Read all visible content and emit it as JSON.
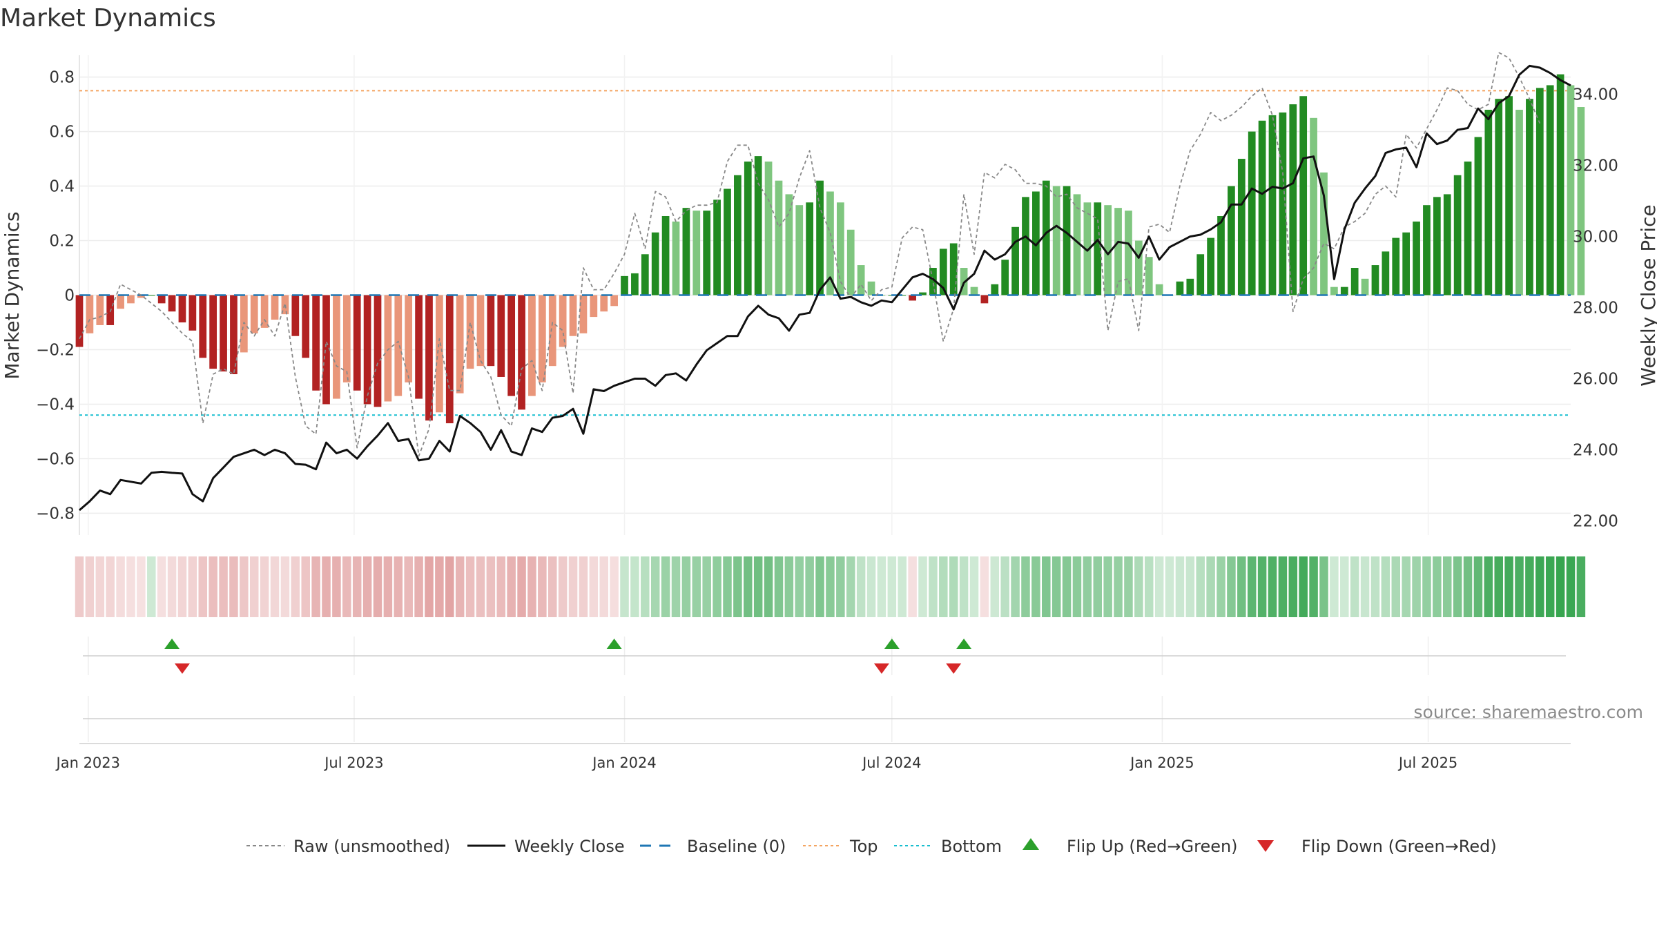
{
  "chart_data": {
    "type": "bar",
    "title": "Market Dynamics",
    "source": "source: sharemaestro.com",
    "left_axis": {
      "label": "Market Dynamics",
      "range": [
        -0.88,
        0.88
      ],
      "ticks": [
        0.8,
        0.6,
        0.4,
        0.2,
        0,
        -0.2,
        -0.4,
        -0.6,
        -0.8
      ],
      "tick_labels": [
        "0.8",
        "0.6",
        "0.4",
        "0.2",
        "0",
        "−0.2",
        "−0.4",
        "−0.6",
        "−0.8"
      ]
    },
    "right_axis": {
      "label": "Weekly Close Price",
      "range": [
        21.6,
        35.1
      ],
      "ticks": [
        34,
        32,
        30,
        28,
        26,
        24,
        22
      ],
      "tick_labels": [
        "34.00",
        "32.00",
        "30.00",
        "28.00",
        "26.00",
        "24.00",
        "22.00"
      ]
    },
    "x_axis": {
      "start": "2022-12-26",
      "end": "2025-10-06",
      "ticks": [
        "2023-01-01",
        "2023-07-01",
        "2024-01-01",
        "2024-07-01",
        "2025-01-01",
        "2025-07-01"
      ],
      "tick_labels": [
        "Jan 2023",
        "Jul 2023",
        "Jan 2024",
        "Jul 2024",
        "Jan 2025",
        "Jul 2025"
      ]
    },
    "reference_lines": {
      "baseline": 0,
      "top": 0.75,
      "bottom": -0.44
    },
    "series": [
      {
        "name": "Market Dynamics",
        "start_date": "2022-12-26",
        "interval_days": 7,
        "values": [
          -0.19,
          -0.14,
          -0.11,
          -0.11,
          -0.05,
          -0.03,
          -0.01,
          0,
          -0.03,
          -0.06,
          -0.1,
          -0.13,
          -0.23,
          -0.27,
          -0.28,
          -0.29,
          -0.21,
          -0.14,
          -0.12,
          -0.09,
          -0.07,
          -0.15,
          -0.23,
          -0.35,
          -0.4,
          -0.38,
          -0.32,
          -0.35,
          -0.4,
          -0.41,
          -0.39,
          -0.37,
          -0.32,
          -0.38,
          -0.46,
          -0.43,
          -0.47,
          -0.36,
          -0.27,
          -0.26,
          -0.26,
          -0.3,
          -0.37,
          -0.42,
          -0.37,
          -0.32,
          -0.26,
          -0.19,
          -0.15,
          -0.14,
          -0.08,
          -0.06,
          -0.04,
          0.07,
          0.08,
          0.15,
          0.23,
          0.29,
          0.27,
          0.32,
          0.31,
          0.31,
          0.35,
          0.39,
          0.44,
          0.49,
          0.51,
          0.49,
          0.42,
          0.37,
          0.33,
          0.34,
          0.42,
          0.38,
          0.34,
          0.24,
          0.11,
          0.05,
          0,
          0,
          0,
          -0.02,
          0.01,
          0.1,
          0.17,
          0.19,
          0.1,
          0.03,
          -0.03,
          0.04,
          0.13,
          0.25,
          0.36,
          0.38,
          0.42,
          0.4,
          0.4,
          0.37,
          0.34,
          0.34,
          0.33,
          0.32,
          0.31,
          0.2,
          0.14,
          0.04,
          0,
          0.05,
          0.06,
          0.15,
          0.21,
          0.29,
          0.4,
          0.5,
          0.6,
          0.64,
          0.66,
          0.67,
          0.7,
          0.73,
          0.65,
          0.45,
          0.03,
          0.03,
          0.1,
          0.06,
          0.11,
          0.16,
          0.21,
          0.23,
          0.27,
          0.33,
          0.36,
          0.37,
          0.44,
          0.49,
          0.58,
          0.68,
          0.72,
          0.73,
          0.68,
          0.72,
          0.76,
          0.77,
          0.81,
          0.77,
          0.69
        ]
      },
      {
        "name": "Raw (unsmoothed)",
        "start_date": "2022-12-26",
        "interval_days": 7,
        "values": [
          -0.16,
          -0.09,
          -0.08,
          -0.06,
          0.04,
          0.02,
          0,
          -0.03,
          -0.06,
          -0.1,
          -0.14,
          -0.17,
          -0.47,
          -0.29,
          -0.27,
          -0.29,
          -0.1,
          -0.15,
          -0.09,
          -0.15,
          -0.03,
          -0.3,
          -0.48,
          -0.51,
          -0.17,
          -0.26,
          -0.28,
          -0.56,
          -0.37,
          -0.25,
          -0.2,
          -0.17,
          -0.3,
          -0.59,
          -0.49,
          -0.16,
          -0.35,
          -0.35,
          -0.1,
          -0.24,
          -0.3,
          -0.44,
          -0.48,
          -0.27,
          -0.24,
          -0.35,
          -0.1,
          -0.13,
          -0.36,
          0.1,
          0.02,
          0.02,
          0.08,
          0.15,
          0.3,
          0.17,
          0.38,
          0.36,
          0.27,
          0.31,
          0.33,
          0.33,
          0.34,
          0.49,
          0.55,
          0.55,
          0.41,
          0.35,
          0.25,
          0.3,
          0.43,
          0.53,
          0.32,
          0.23,
          0.05,
          -0.01,
          0.04,
          -0.02,
          0.02,
          0.03,
          0.21,
          0.25,
          0.24,
          0.05,
          -0.17,
          -0.05,
          0.37,
          0.15,
          0.45,
          0.43,
          0.48,
          0.46,
          0.41,
          0.41,
          0.4,
          0.36,
          0.37,
          0.32,
          0.3,
          0.28,
          -0.13,
          0.05,
          0.06,
          -0.13,
          0.25,
          0.26,
          0.23,
          0.4,
          0.53,
          0.59,
          0.67,
          0.64,
          0.66,
          0.69,
          0.73,
          0.76,
          0.66,
          0.45,
          -0.06,
          0.06,
          0.1,
          0.19,
          0.17,
          0.25,
          0.27,
          0.3,
          0.37,
          0.4,
          0.36,
          0.59,
          0.54,
          0.61,
          0.68,
          0.76,
          0.75,
          0.7,
          0.68,
          0.7,
          0.89,
          0.87,
          0.8,
          0.72,
          0.63
        ]
      },
      {
        "name": "Weekly Close",
        "axis": "right",
        "start_date": "2022-12-26",
        "interval_days": 7,
        "values": [
          22.3,
          22.55,
          22.85,
          22.75,
          23.15,
          23.1,
          23.05,
          23.35,
          23.38,
          23.35,
          23.33,
          22.75,
          22.55,
          23.2,
          23.5,
          23.8,
          23.9,
          24.0,
          23.85,
          24.0,
          23.9,
          23.6,
          23.58,
          23.45,
          24.2,
          23.9,
          24.0,
          23.75,
          24.1,
          24.4,
          24.75,
          24.25,
          24.3,
          23.7,
          23.75,
          24.25,
          23.95,
          24.95,
          24.75,
          24.5,
          24.0,
          24.55,
          23.95,
          23.85,
          24.6,
          24.5,
          24.9,
          24.95,
          25.15,
          24.45,
          25.7,
          25.65,
          25.8,
          25.9,
          26.0,
          26.0,
          25.8,
          26.1,
          26.15,
          25.95,
          26.4,
          26.8,
          27.0,
          27.2,
          27.2,
          27.75,
          28.05,
          27.8,
          27.7,
          27.35,
          27.8,
          27.85,
          28.5,
          28.85,
          28.25,
          28.3,
          28.15,
          28.05,
          28.2,
          28.15,
          28.5,
          28.85,
          28.95,
          28.8,
          28.55,
          27.95,
          28.7,
          28.95,
          29.6,
          29.35,
          29.5,
          29.85,
          30.0,
          29.75,
          30.1,
          30.3,
          30.1,
          29.85,
          29.6,
          29.9,
          29.5,
          29.85,
          29.8,
          29.4,
          30.0,
          29.35,
          29.7,
          29.85,
          30.0,
          30.05,
          30.2,
          30.4,
          30.9,
          30.9,
          31.35,
          31.2,
          31.4,
          31.35,
          31.5,
          32.2,
          32.25,
          31.15,
          28.8,
          30.2,
          30.95,
          31.35,
          31.7,
          32.35,
          32.45,
          32.5,
          31.95,
          32.9,
          32.6,
          32.7,
          33.0,
          33.05,
          33.6,
          33.3,
          33.75,
          33.95,
          34.55,
          34.8,
          34.75,
          34.6,
          34.4,
          34.25
        ]
      }
    ],
    "regime_strip": {
      "label": "regime intensity (negative = red, positive = green)",
      "values": [
        -0.19,
        -0.14,
        -0.11,
        -0.11,
        -0.05,
        -0.03,
        -0.01,
        0.03,
        -0.03,
        -0.06,
        -0.1,
        -0.13,
        -0.23,
        -0.27,
        -0.28,
        -0.29,
        -0.21,
        -0.14,
        -0.12,
        -0.09,
        -0.07,
        -0.15,
        -0.23,
        -0.35,
        -0.4,
        -0.38,
        -0.32,
        -0.35,
        -0.4,
        -0.41,
        -0.39,
        -0.37,
        -0.32,
        -0.38,
        -0.46,
        -0.43,
        -0.47,
        -0.36,
        -0.27,
        -0.26,
        -0.26,
        -0.3,
        -0.37,
        -0.42,
        -0.37,
        -0.32,
        -0.26,
        -0.19,
        -0.15,
        -0.14,
        -0.08,
        -0.06,
        -0.04,
        0.07,
        0.08,
        0.15,
        0.23,
        0.29,
        0.27,
        0.32,
        0.31,
        0.31,
        0.35,
        0.39,
        0.44,
        0.49,
        0.51,
        0.49,
        0.42,
        0.37,
        0.33,
        0.34,
        0.42,
        0.38,
        0.34,
        0.24,
        0.11,
        0.05,
        0.03,
        0.03,
        0.03,
        -0.02,
        0.03,
        0.1,
        0.17,
        0.19,
        0.1,
        0.03,
        -0.03,
        0.04,
        0.13,
        0.25,
        0.36,
        0.38,
        0.42,
        0.4,
        0.4,
        0.37,
        0.34,
        0.34,
        0.33,
        0.32,
        0.31,
        0.2,
        0.14,
        0.04,
        0.03,
        0.05,
        0.06,
        0.15,
        0.21,
        0.29,
        0.4,
        0.5,
        0.6,
        0.64,
        0.66,
        0.67,
        0.7,
        0.73,
        0.65,
        0.45,
        0.03,
        0.03,
        0.1,
        0.06,
        0.11,
        0.16,
        0.21,
        0.23,
        0.27,
        0.33,
        0.36,
        0.37,
        0.44,
        0.49,
        0.58,
        0.68,
        0.72,
        0.73,
        0.68,
        0.72,
        0.76,
        0.77,
        0.81,
        0.77,
        0.69
      ]
    },
    "flip_up": [
      "2023-02-27",
      "2023-12-25",
      "2024-07-01",
      "2024-08-19"
    ],
    "flip_down": [
      "2023-03-06",
      "2024-06-24",
      "2024-08-12"
    ],
    "legend": [
      {
        "label": "Raw (unsmoothed)",
        "style": "dotted-gray"
      },
      {
        "label": "Weekly Close",
        "style": "solid-black"
      },
      {
        "label": "Baseline (0)",
        "style": "dashed-blue"
      },
      {
        "label": "Top",
        "style": "dotted-orange"
      },
      {
        "label": "Bottom",
        "style": "dotted-cyan"
      },
      {
        "label": "Flip Up (Red→Green)",
        "style": "triangle-up-green"
      },
      {
        "label": "Flip Down (Green→Red)",
        "style": "triangle-down-red"
      }
    ],
    "legend_position": "bottom-center",
    "grid": true,
    "colors": {
      "strong_red": "#b22222",
      "light_red": "#e9967a",
      "strong_green": "#228b22",
      "light_green": "#7fc67f",
      "raw_line": "#888888",
      "close_line": "#111111",
      "baseline": "#1f77b4",
      "top_line": "#f4a460",
      "bottom_line": "#17becf",
      "flip_up": "#2ca02c",
      "flip_down": "#d62728"
    }
  }
}
